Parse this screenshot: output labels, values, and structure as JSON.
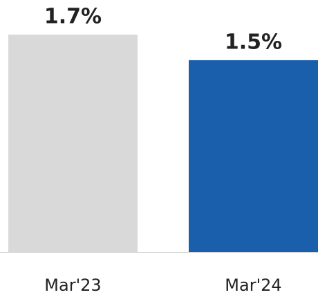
{
  "chart_data": {
    "type": "bar",
    "categories": [
      "Mar'23",
      "Mar'24"
    ],
    "values": [
      1.7,
      1.5
    ],
    "value_labels": [
      "1.7%",
      "1.5%"
    ],
    "colors": [
      "#d9d9d9",
      "#1a5fac"
    ]
  }
}
